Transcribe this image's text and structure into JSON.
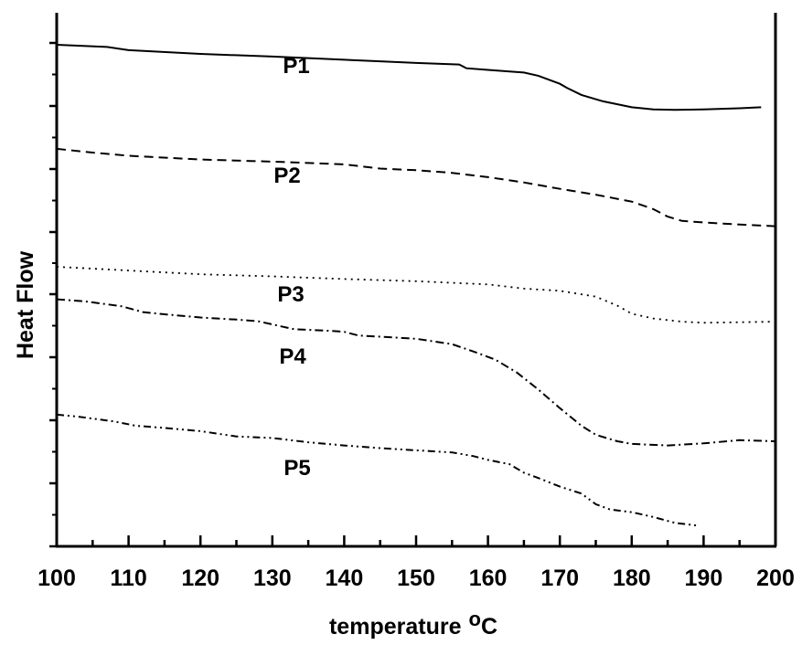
{
  "chart_data": {
    "type": "line",
    "title": "",
    "xlabel": "temperature",
    "xlabel_unit": "oC",
    "ylabel": "Heat Flow",
    "xlim": [
      100,
      200
    ],
    "ylim": [
      0,
      100
    ],
    "x_ticks": [
      "100",
      "110",
      "120",
      "130",
      "140",
      "150",
      "160",
      "170",
      "180",
      "190",
      "200"
    ],
    "y_tick_labels": "none",
    "grid": false,
    "legend": "none",
    "series": [
      {
        "name": "P1",
        "style": "solid",
        "points": [
          [
            100,
            94.0
          ],
          [
            107,
            93.6
          ],
          [
            110,
            93.0
          ],
          [
            120,
            92.3
          ],
          [
            130,
            91.8
          ],
          [
            135,
            91.5
          ],
          [
            140,
            91.2
          ],
          [
            145,
            90.9
          ],
          [
            150,
            90.6
          ],
          [
            156,
            90.3
          ],
          [
            157,
            89.6
          ],
          [
            160,
            89.3
          ],
          [
            163,
            89.0
          ],
          [
            165,
            88.8
          ],
          [
            167,
            88.2
          ],
          [
            170,
            86.7
          ],
          [
            171,
            85.9
          ],
          [
            173,
            84.6
          ],
          [
            176,
            83.4
          ],
          [
            180,
            82.3
          ],
          [
            183,
            81.9
          ],
          [
            186,
            81.8
          ],
          [
            190,
            81.9
          ],
          [
            195,
            82.1
          ],
          [
            198,
            82.3
          ]
        ]
      },
      {
        "name": "P2",
        "style": "dashed",
        "points": [
          [
            100,
            74.5
          ],
          [
            105,
            73.8
          ],
          [
            110,
            73.2
          ],
          [
            120,
            72.5
          ],
          [
            130,
            72.1
          ],
          [
            140,
            71.6
          ],
          [
            145,
            70.8
          ],
          [
            150,
            70.5
          ],
          [
            155,
            70.0
          ],
          [
            160,
            69.2
          ],
          [
            165,
            68.2
          ],
          [
            170,
            67.0
          ],
          [
            175,
            65.9
          ],
          [
            180,
            64.6
          ],
          [
            183,
            63.2
          ],
          [
            185,
            61.8
          ],
          [
            187,
            61.0
          ],
          [
            190,
            60.7
          ],
          [
            195,
            60.3
          ],
          [
            200,
            60.0
          ]
        ]
      },
      {
        "name": "P3",
        "style": "dotted",
        "points": [
          [
            100,
            52.4
          ],
          [
            110,
            51.7
          ],
          [
            120,
            51.0
          ],
          [
            130,
            50.6
          ],
          [
            140,
            50.1
          ],
          [
            150,
            49.7
          ],
          [
            160,
            49.1
          ],
          [
            165,
            48.3
          ],
          [
            170,
            47.9
          ],
          [
            175,
            46.8
          ],
          [
            178,
            45.1
          ],
          [
            180,
            43.6
          ],
          [
            183,
            42.7
          ],
          [
            187,
            42.1
          ],
          [
            190,
            41.9
          ],
          [
            195,
            42.0
          ],
          [
            200,
            42.1
          ]
        ]
      },
      {
        "name": "P4",
        "style": "dash-dot",
        "points": [
          [
            100,
            46.3
          ],
          [
            104,
            45.9
          ],
          [
            109,
            45.0
          ],
          [
            112,
            43.9
          ],
          [
            115,
            43.5
          ],
          [
            120,
            42.9
          ],
          [
            125,
            42.5
          ],
          [
            128,
            42.2
          ],
          [
            130,
            41.6
          ],
          [
            133,
            40.7
          ],
          [
            138,
            40.4
          ],
          [
            140,
            40.2
          ],
          [
            142,
            39.5
          ],
          [
            145,
            39.3
          ],
          [
            150,
            38.9
          ],
          [
            155,
            37.9
          ],
          [
            158,
            36.5
          ],
          [
            161,
            35.0
          ],
          [
            164,
            32.6
          ],
          [
            167,
            29.4
          ],
          [
            170,
            25.9
          ],
          [
            173,
            22.6
          ],
          [
            175,
            20.9
          ],
          [
            178,
            19.7
          ],
          [
            180,
            19.2
          ],
          [
            185,
            18.9
          ],
          [
            190,
            19.3
          ],
          [
            195,
            19.9
          ],
          [
            200,
            19.7
          ]
        ]
      },
      {
        "name": "P5",
        "style": "dash-dot-dot",
        "points": [
          [
            100,
            24.7
          ],
          [
            103,
            24.3
          ],
          [
            108,
            23.4
          ],
          [
            111,
            22.6
          ],
          [
            115,
            22.2
          ],
          [
            120,
            21.6
          ],
          [
            125,
            20.6
          ],
          [
            130,
            20.3
          ],
          [
            135,
            19.5
          ],
          [
            140,
            18.9
          ],
          [
            145,
            18.4
          ],
          [
            150,
            18.0
          ],
          [
            155,
            17.6
          ],
          [
            158,
            16.9
          ],
          [
            160,
            16.2
          ],
          [
            163,
            15.4
          ],
          [
            165,
            13.8
          ],
          [
            167,
            12.8
          ],
          [
            170,
            11.2
          ],
          [
            173,
            9.9
          ],
          [
            175,
            7.9
          ],
          [
            177,
            6.9
          ],
          [
            180,
            6.4
          ],
          [
            183,
            5.5
          ],
          [
            186,
            4.4
          ],
          [
            189,
            3.9
          ]
        ]
      }
    ]
  }
}
